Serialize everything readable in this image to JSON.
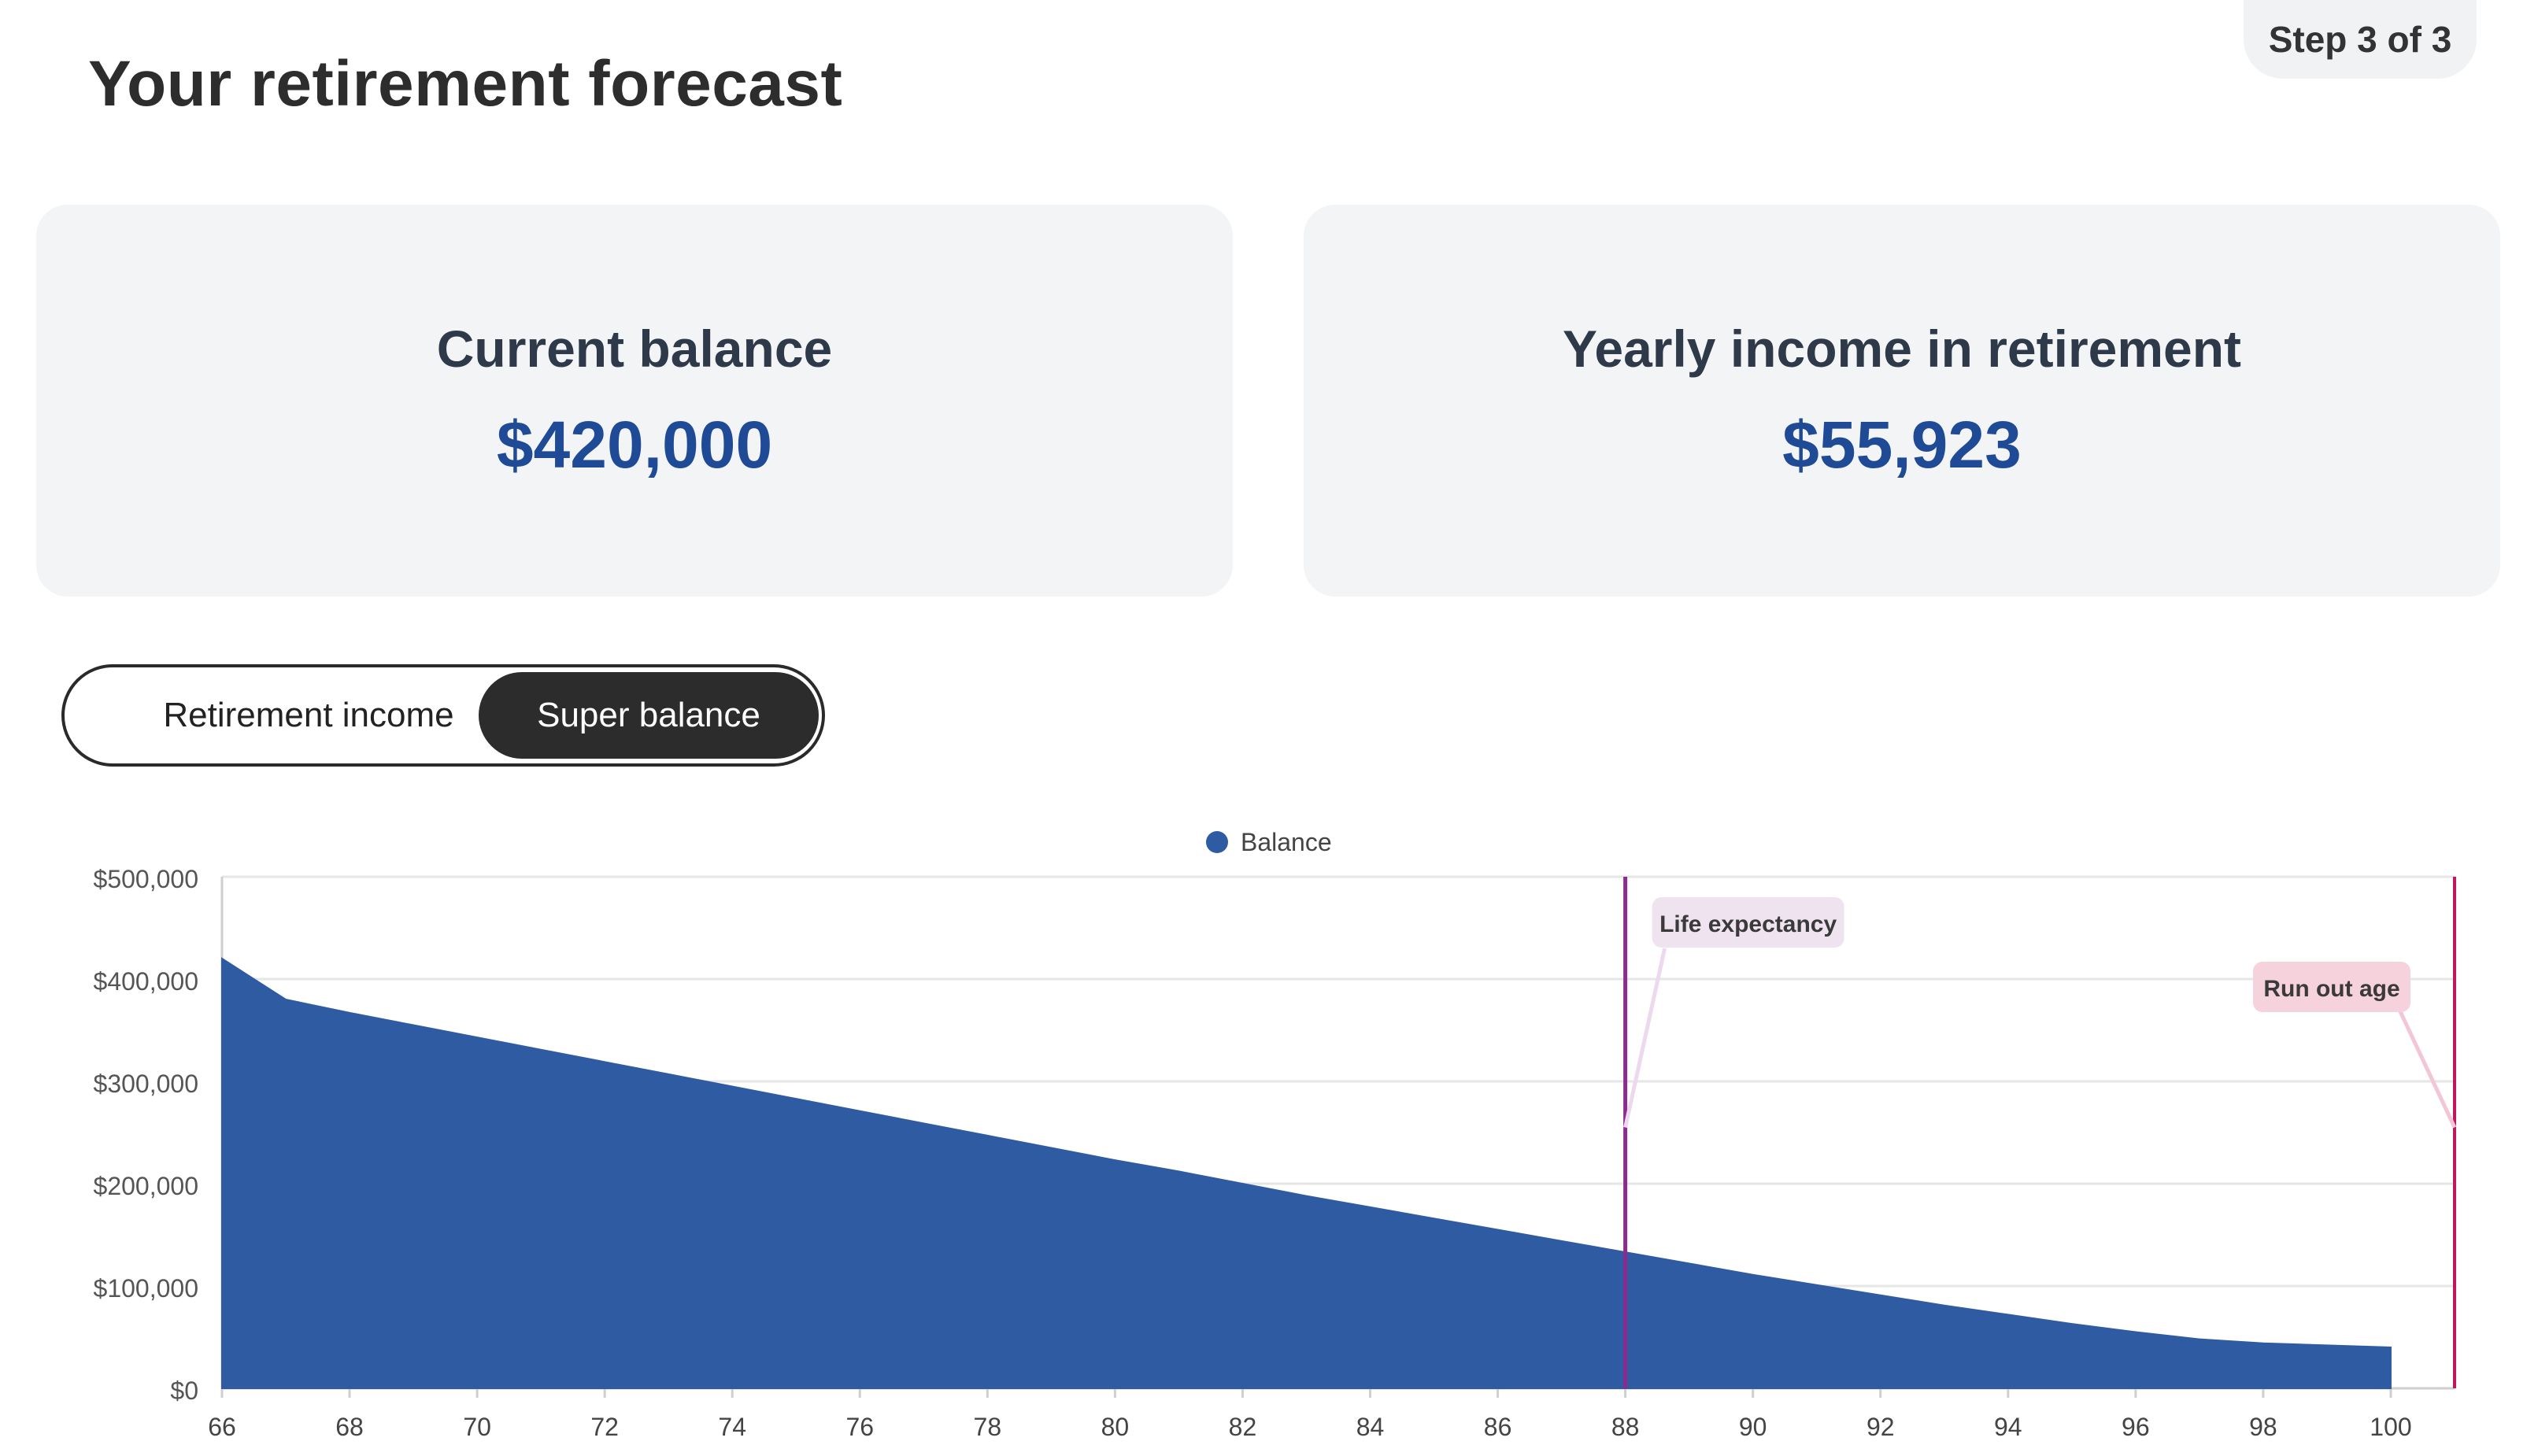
{
  "header": {
    "title": "Your retirement forecast",
    "step": "Step 3 of 3"
  },
  "cards": [
    {
      "label": "Current balance",
      "value": "$420,000"
    },
    {
      "label": "Yearly income in retirement",
      "value": "$55,923"
    }
  ],
  "toggle": {
    "options": [
      "Retirement income",
      "Super balance"
    ],
    "selected": "Super balance"
  },
  "colors": {
    "balance": "#2e5ba1",
    "life_expectancy": "#8b2a8f",
    "run_out": "#c2185b",
    "accent": "#1f4a96"
  },
  "chart_data": {
    "type": "area",
    "legend": "Balance",
    "legend_position": "top-center",
    "x": [
      66,
      67,
      68,
      69,
      70,
      71,
      72,
      73,
      74,
      75,
      76,
      77,
      78,
      79,
      80,
      81,
      82,
      83,
      84,
      85,
      86,
      87,
      88,
      89,
      90,
      91,
      92,
      93,
      94,
      95,
      96,
      97,
      98,
      99,
      100
    ],
    "series": [
      {
        "name": "Balance",
        "values": [
          420000,
          380000,
          367000,
          355000,
          343000,
          331000,
          319000,
          307000,
          295000,
          283000,
          271000,
          259000,
          247000,
          235000,
          223000,
          212000,
          200000,
          188000,
          177000,
          166000,
          155000,
          144000,
          133000,
          122000,
          111000,
          101000,
          91000,
          81000,
          72000,
          63000,
          55000,
          48000,
          44000,
          42000,
          40000
        ]
      }
    ],
    "xlim": [
      66,
      101
    ],
    "ylim": [
      0,
      500000
    ],
    "x_ticks": [
      "66",
      "68",
      "70",
      "72",
      "74",
      "76",
      "78",
      "80",
      "82",
      "84",
      "86",
      "88",
      "90",
      "92",
      "94",
      "96",
      "98",
      "100"
    ],
    "y_ticks": [
      "$0",
      "$100,000",
      "$200,000",
      "$300,000",
      "$400,000",
      "$500,000"
    ],
    "grid": true,
    "annotations": [
      {
        "label": "Life expectancy",
        "x": 88
      },
      {
        "label": "Run out age",
        "x": 101
      }
    ]
  }
}
